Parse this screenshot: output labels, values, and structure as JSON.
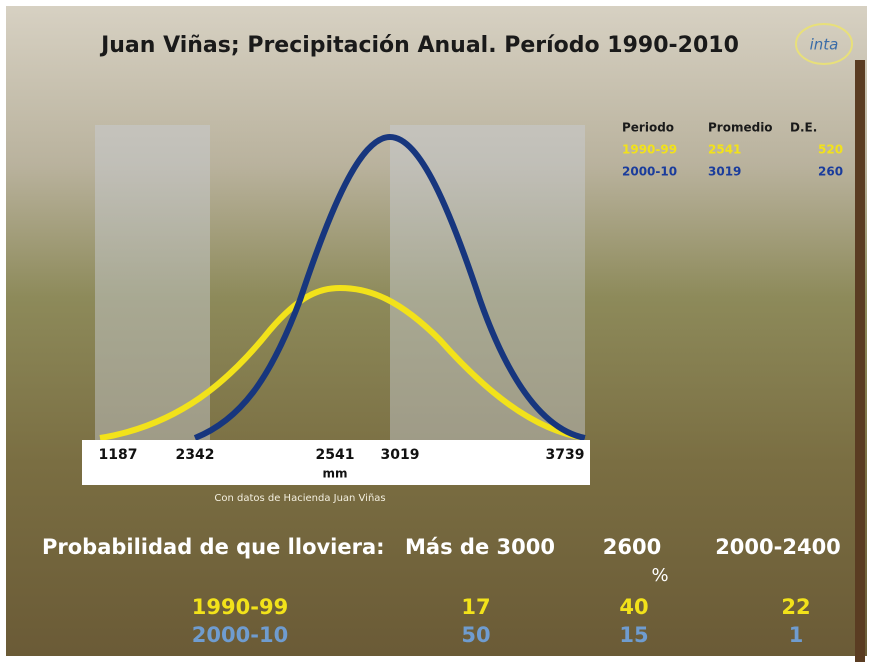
{
  "title": "Juan Viñas; Precipitación Anual. Período 1990-2010",
  "logo": "inta",
  "axis": {
    "labels": [
      1187,
      2342,
      2541,
      3019,
      3739
    ],
    "unit": "mm"
  },
  "source": "Con datos de Hacienda Juan Viñas",
  "stats_table": {
    "header": [
      "Periodo",
      "Promedio",
      "D.E."
    ],
    "rows": [
      [
        "1990-99",
        2541,
        520
      ],
      [
        "2000-10",
        3019,
        260
      ]
    ]
  },
  "probability": {
    "label": "Probabilidad de que lloviera:",
    "columns": [
      "Más de 3000",
      "2600",
      "2000-2400"
    ],
    "unit": "%",
    "rows": [
      [
        "1990-99",
        17,
        40,
        22
      ],
      [
        "2000-10",
        50,
        15,
        1
      ]
    ]
  }
}
